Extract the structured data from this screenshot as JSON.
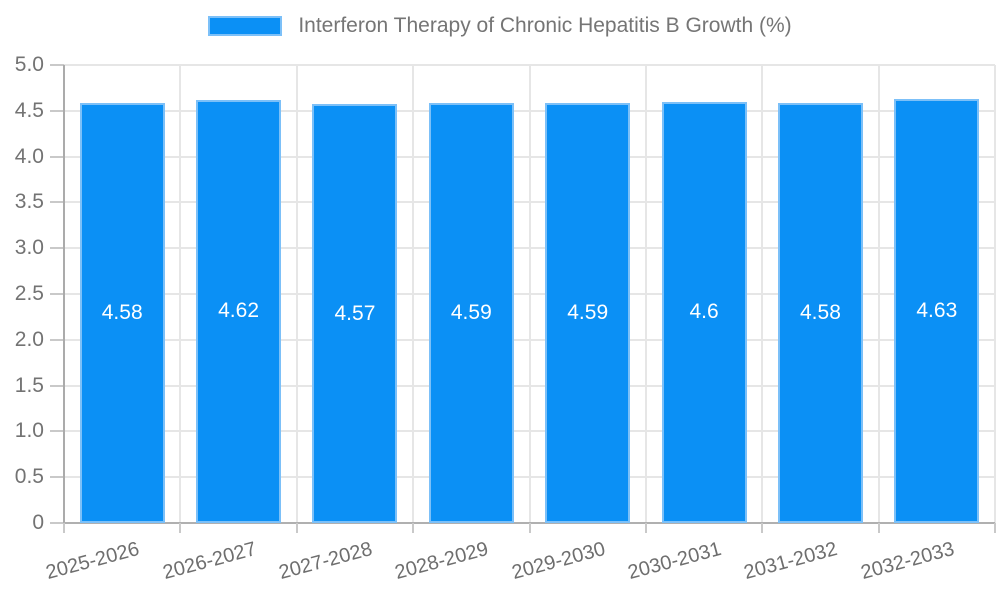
{
  "chart_data": {
    "type": "bar",
    "title": "",
    "legend_label": "Interferon Therapy of Chronic Hepatitis B Growth (%)",
    "legend_position": "top",
    "categories": [
      "2025-2026",
      "2026-2027",
      "2027-2028",
      "2028-2029",
      "2029-2030",
      "2030-2031",
      "2031-2032",
      "2032-2033"
    ],
    "values": [
      4.58,
      4.62,
      4.57,
      4.59,
      4.59,
      4.6,
      4.58,
      4.63
    ],
    "value_labels": [
      "4.58",
      "4.62",
      "4.57",
      "4.59",
      "4.59",
      "4.6",
      "4.58",
      "4.63"
    ],
    "xlabel": "",
    "ylabel": "",
    "ylim": [
      0,
      5
    ],
    "yticks": [
      "0",
      "0.5",
      "1.0",
      "1.5",
      "2.0",
      "2.5",
      "3.0",
      "3.5",
      "4.0",
      "4.5",
      "5.0"
    ],
    "grid": true,
    "colors": {
      "bar_fill": "#0b90f5",
      "bar_border": "#7cc0f8",
      "value_label": "#ffffff",
      "axis_text": "#737373",
      "gridline": "#e6e6e6",
      "axis_line": "#ababab"
    }
  }
}
